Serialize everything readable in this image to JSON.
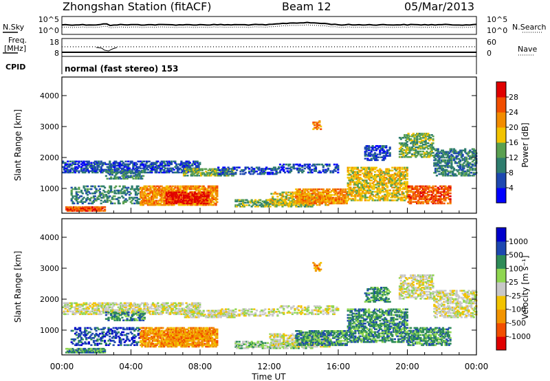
{
  "header": {
    "title": "Zhongshan Station (fitACF)",
    "beam": "Beam 12",
    "date": "05/Mar/2013"
  },
  "panels": {
    "nsky_label": "N.Sky",
    "nsearch_label": "N.Search",
    "freq_label_1": "Freq.",
    "freq_label_2": "[MHz]",
    "nave_label": "Nave",
    "cpid_label": "CPID",
    "cpid_value": "normal (fast stereo) 153",
    "noise_left_ticks": [
      "10^5",
      "10^0"
    ],
    "noise_right_ticks": [
      "10^5",
      "10^0"
    ],
    "freq_left_ticks": [
      "18",
      "8"
    ],
    "nave_right_ticks": [
      "60",
      "0"
    ]
  },
  "colors": {
    "power_scale": [
      "#0000ff",
      "#1d48b0",
      "#2e7d6e",
      "#5aa050",
      "#f2c300",
      "#f28c00",
      "#f24e00",
      "#e00000"
    ],
    "velocity_scale": [
      "#e00000",
      "#f24e00",
      "#f29400",
      "#f2c300",
      "#c8c8c8",
      "#8fd650",
      "#2e8b57",
      "#1d48b0",
      "#0000cc"
    ]
  },
  "chart_data": [
    {
      "type": "heatmap",
      "name": "power",
      "ylabel": "Slant Range [km]",
      "ylim": [
        200,
        4600
      ],
      "yticks": [
        "1000",
        "2000",
        "3000",
        "4000"
      ],
      "xlim": [
        "00:00",
        "24:00"
      ],
      "colorbar": {
        "label": "Power [dB]",
        "ticks": [
          "4",
          "8",
          "12",
          "16",
          "20",
          "24",
          "28"
        ]
      }
    },
    {
      "type": "heatmap",
      "name": "velocity",
      "ylabel": "Slant Range [km]",
      "ylim": [
        200,
        4600
      ],
      "yticks": [
        "1000",
        "2000",
        "3000",
        "4000"
      ],
      "xlabel": "Time UT",
      "xticks": [
        "00:00",
        "04:00",
        "08:00",
        "12:00",
        "16:00",
        "20:00",
        "00:00"
      ],
      "colorbar": {
        "label": "Velocity [m s⁻¹]",
        "ticks": [
          "1000",
          "500",
          "100",
          "25",
          "-25",
          "-100",
          "-500",
          "-1000"
        ]
      }
    }
  ]
}
